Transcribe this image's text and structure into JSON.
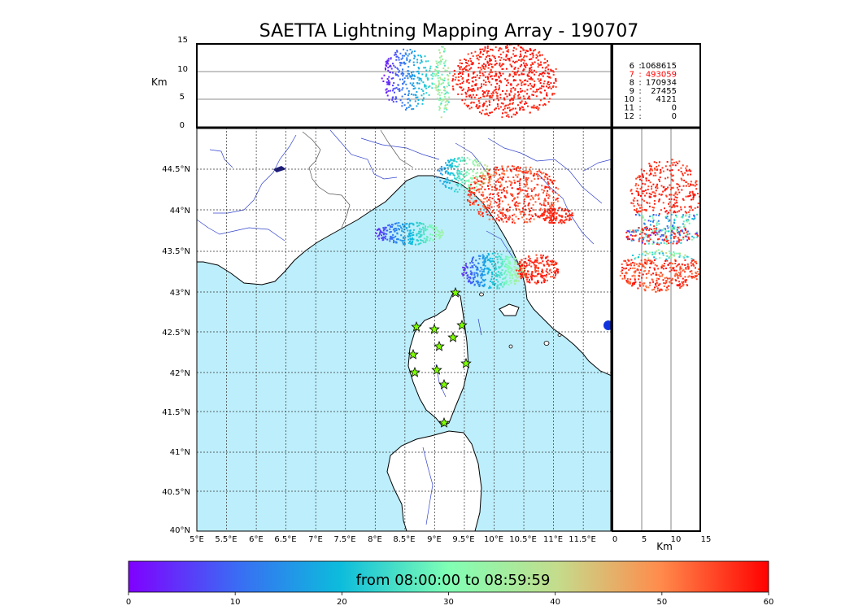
{
  "title": "SAETTA Lightning Mapping Array - 190707",
  "altitude_panel": {
    "unit_label": "Km",
    "y_ticks": [
      "15",
      "10",
      "5",
      "0"
    ]
  },
  "side_panel": {
    "unit_label": "Km",
    "x_ticks": [
      "0",
      "5",
      "10",
      "15"
    ]
  },
  "map": {
    "lat_ticks": [
      "44.5°N",
      "44°N",
      "43.5°N",
      "43°N",
      "42.5°N",
      "42°N",
      "41.5°N",
      "41°N",
      "40.5°N",
      "40°N"
    ],
    "lon_ticks": [
      "5°E",
      "5.5°E",
      "6°E",
      "6.5°E",
      "7°E",
      "7.5°E",
      "8°E",
      "8.5°E",
      "9°E",
      "9.5°E",
      "10°E",
      "10.5°E",
      "11°E",
      "11.5°E"
    ],
    "sea_color": "#bdeefb",
    "land_color": "#ffffff",
    "river_color": "#3344cc",
    "station_color": "#7fff00",
    "station_count": 12
  },
  "stats": [
    {
      "label": "6",
      "value": "1068615",
      "color": "#000000"
    },
    {
      "label": "7",
      "value": "493059",
      "color": "#ff0000"
    },
    {
      "label": "8",
      "value": "170934",
      "color": "#000000"
    },
    {
      "label": "9",
      "value": "27455",
      "color": "#000000"
    },
    {
      "label": "10",
      "value": "4121",
      "color": "#000000"
    },
    {
      "label": "11",
      "value": "0",
      "color": "#000000"
    },
    {
      "label": "12",
      "value": "0",
      "color": "#000000"
    }
  ],
  "colorbar": {
    "text": "from 08:00:00 to 08:59:59",
    "ticks": [
      "0",
      "10",
      "20",
      "30",
      "40",
      "50",
      "60"
    ],
    "colormap": "rainbow"
  }
}
